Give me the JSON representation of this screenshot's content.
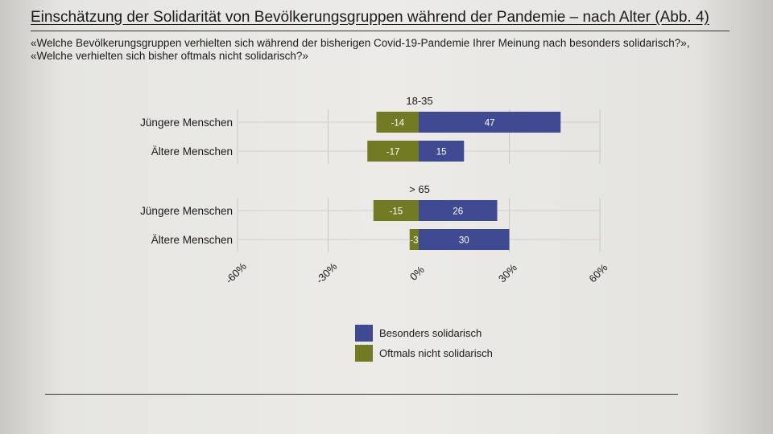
{
  "title": "Einschätzung der Solidarität von Bevölkerungsgruppen während der Pandemie – nach Alter  (Abb. 4)",
  "subtitle": "«Welche Bevölkerungsgruppen verhielten sich während der bisherigen Covid-19-Pandemie Ihrer Meinung nach besonders solidarisch?», «Welche verhielten sich bisher oftmals nicht solidarisch?»",
  "colors": {
    "solidarisch": "#3f4a93",
    "nicht_solidarisch": "#737a24"
  },
  "legend": {
    "solidarisch": "Besonders solidarisch",
    "nicht_solidarisch": "Oftmals nicht solidarisch"
  },
  "chart_data": {
    "type": "bar",
    "orientation": "horizontal",
    "stacking": "diverging",
    "xlim": [
      -60,
      60
    ],
    "xticks": [
      -60,
      -30,
      0,
      30,
      60
    ],
    "xtick_labels": [
      "-60%",
      "-30%",
      "0%",
      "30%",
      "60%"
    ],
    "grid": true,
    "legend_position": "bottom",
    "groups": [
      {
        "label": "18-35",
        "categories": [
          "Jüngere Menschen",
          "Ältere Menschen"
        ],
        "series": [
          {
            "name": "Oftmals nicht solidarisch",
            "values": [
              -14,
              -17
            ],
            "labels": [
              "-14",
              "-17"
            ]
          },
          {
            "name": "Besonders solidarisch",
            "values": [
              47,
              15
            ],
            "labels": [
              "47",
              "15"
            ]
          }
        ]
      },
      {
        "label": "> 65",
        "categories": [
          "Jüngere Menschen",
          "Ältere Menschen"
        ],
        "series": [
          {
            "name": "Oftmals nicht solidarisch",
            "values": [
              -15,
              -3
            ],
            "labels": [
              "-15",
              "-3"
            ]
          },
          {
            "name": "Besonders solidarisch",
            "values": [
              26,
              30
            ],
            "labels": [
              "26",
              "30"
            ]
          }
        ]
      }
    ]
  }
}
